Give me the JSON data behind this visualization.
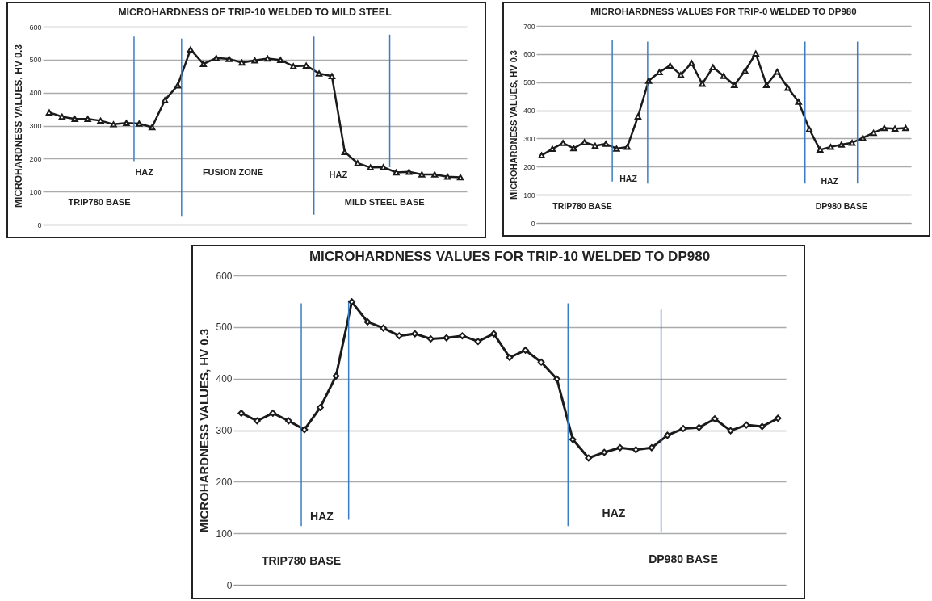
{
  "chart_data": [
    {
      "type": "line",
      "title": "MICROHARDNESS OF TRIP-10 WELDED TO MILD STEEL",
      "ylabel": "MICROHARDNESS VALUES, HV 0.3",
      "ylim": [
        0,
        600
      ],
      "yticks": [
        0,
        100,
        200,
        300,
        400,
        500,
        600
      ],
      "grid": "y",
      "tick_labels": "y",
      "marker": "triangle",
      "categories": [
        null,
        null,
        null,
        null,
        null,
        null,
        null,
        null,
        null,
        null,
        null,
        null,
        null,
        null,
        null,
        null,
        null,
        null,
        null,
        null,
        null,
        null,
        null,
        null,
        null,
        null,
        null,
        null,
        null,
        null,
        null,
        null,
        null
      ],
      "series": [
        {
          "color": "#1a1a1a",
          "values": [
            340,
            327,
            320,
            320,
            315,
            304,
            308,
            306,
            295,
            377,
            422,
            531,
            487,
            505,
            502,
            491,
            498,
            503,
            499,
            480,
            482,
            458,
            450,
            220,
            186,
            173,
            174,
            158,
            160,
            152,
            152,
            145,
            143
          ]
        }
      ],
      "annotations": [
        "TRIP780 BASE",
        "HAZ",
        "FUSION ZONE",
        "HAZ",
        "MILD STEEL  BASE"
      ]
    },
    {
      "type": "line",
      "title": "MICROHARDNESS VALUES FOR TRIP-0 WELDED TO DP980",
      "ylabel": "MICROHARDNESS VALUES, HV 0.3",
      "ylim": [
        0,
        700
      ],
      "yticks": [
        0,
        100,
        200,
        300,
        400,
        500,
        600,
        700
      ],
      "grid": "y",
      "tick_labels": "y",
      "marker": "triangle",
      "categories": [
        null,
        null,
        null,
        null,
        null,
        null,
        null,
        null,
        null,
        null,
        null,
        null,
        null,
        null,
        null,
        null,
        null,
        null,
        null,
        null,
        null,
        null,
        null,
        null,
        null,
        null,
        null,
        null,
        null,
        null,
        null,
        null,
        null,
        null,
        null
      ],
      "series": [
        {
          "color": "#1a1a1a",
          "values": [
            240,
            263,
            284,
            265,
            287,
            274,
            281,
            264,
            270,
            378,
            505,
            536,
            559,
            526,
            568,
            494,
            553,
            522,
            490,
            540,
            602,
            490,
            537,
            480,
            430,
            333,
            260,
            270,
            278,
            285,
            302,
            320,
            337,
            335,
            337
          ]
        }
      ],
      "annotations": [
        "TRIP780 BASE",
        "HAZ",
        "HAZ",
        "DP980 BASE"
      ]
    },
    {
      "type": "line",
      "title": "MICROHARDNESS VALUES FOR TRIP-10 WELDED TO DP980",
      "ylabel": "MICROHARDNESS VALUES, HV 0.3",
      "ylim": [
        0,
        600
      ],
      "yticks": [
        0,
        100,
        200,
        300,
        400,
        500,
        600
      ],
      "grid": "y",
      "tick_labels": "y",
      "marker": "diamond",
      "categories": [
        null,
        null,
        null,
        null,
        null,
        null,
        null,
        null,
        null,
        null,
        null,
        null,
        null,
        null,
        null,
        null,
        null,
        null,
        null,
        null,
        null,
        null,
        null,
        null,
        null,
        null,
        null,
        null,
        null,
        null,
        null,
        null,
        null,
        null,
        null
      ],
      "series": [
        {
          "color": "#1a1a1a",
          "values": [
            333,
            318,
            333,
            318,
            301,
            344,
            405,
            549,
            510,
            498,
            483,
            487,
            477,
            479,
            483,
            472,
            487,
            441,
            455,
            432,
            399,
            282,
            246,
            257,
            266,
            262,
            266,
            290,
            303,
            305,
            322,
            299,
            310,
            307,
            323
          ]
        }
      ],
      "annotations": [
        "TRIP780 BASE",
        "HAZ",
        "HAZ",
        "DP980 BASE"
      ]
    }
  ]
}
